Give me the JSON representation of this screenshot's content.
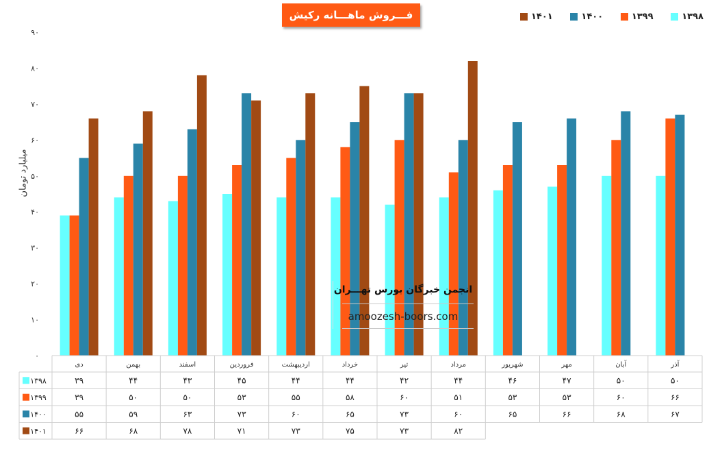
{
  "chart_data": {
    "type": "bar",
    "title": "فـــروش ماهـــانه رکیش",
    "ylabel": "میلیارد تومان",
    "xlabel": "",
    "ylim": [
      0,
      90
    ],
    "yticks": [
      "۰",
      "۱۰",
      "۲۰",
      "۳۰",
      "۴۰",
      "۵۰",
      "۶۰",
      "۷۰",
      "۸۰",
      "۹۰"
    ],
    "grid": false,
    "legend_position": "top-right",
    "categories": [
      "دی",
      "بهمن",
      "اسفند",
      "فروردین",
      "اردیبهشت",
      "خرداد",
      "تیر",
      "مرداد",
      "شهریور",
      "مهر",
      "آبان",
      "آذر"
    ],
    "series": [
      {
        "name": "۱۳۹۸",
        "color": "#66ffff",
        "values": [
          39,
          44,
          43,
          45,
          44,
          44,
          42,
          44,
          46,
          47,
          50,
          50
        ],
        "labels": [
          "۳۹",
          "۴۴",
          "۴۳",
          "۴۵",
          "۴۴",
          "۴۴",
          "۴۲",
          "۴۴",
          "۴۶",
          "۴۷",
          "۵۰",
          "۵۰"
        ]
      },
      {
        "name": "۱۳۹۹",
        "color": "#ff5a14",
        "values": [
          39,
          50,
          50,
          53,
          55,
          58,
          60,
          51,
          53,
          53,
          60,
          66
        ],
        "labels": [
          "۳۹",
          "۵۰",
          "۵۰",
          "۵۳",
          "۵۵",
          "۵۸",
          "۶۰",
          "۵۱",
          "۵۳",
          "۵۳",
          "۶۰",
          "۶۶"
        ]
      },
      {
        "name": "۱۴۰۰",
        "color": "#2a84a8",
        "values": [
          55,
          59,
          63,
          73,
          60,
          65,
          73,
          60,
          65,
          66,
          68,
          67
        ],
        "labels": [
          "۵۵",
          "۵۹",
          "۶۳",
          "۷۳",
          "۶۰",
          "۶۵",
          "۷۳",
          "۶۰",
          "۶۵",
          "۶۶",
          "۶۸",
          "۶۷"
        ]
      },
      {
        "name": "۱۴۰۱",
        "color": "#a14a14",
        "values": [
          66,
          68,
          78,
          71,
          73,
          75,
          73,
          82,
          null,
          null,
          null,
          null
        ],
        "labels": [
          "۶۶",
          "۶۸",
          "۷۸",
          "۷۱",
          "۷۳",
          "۷۵",
          "۷۳",
          "۸۲",
          "",
          "",
          "",
          ""
        ]
      }
    ]
  },
  "watermark": {
    "title": "انجمن خبرگان بورس تهـــران",
    "url": "amoozesh-boors.com"
  }
}
